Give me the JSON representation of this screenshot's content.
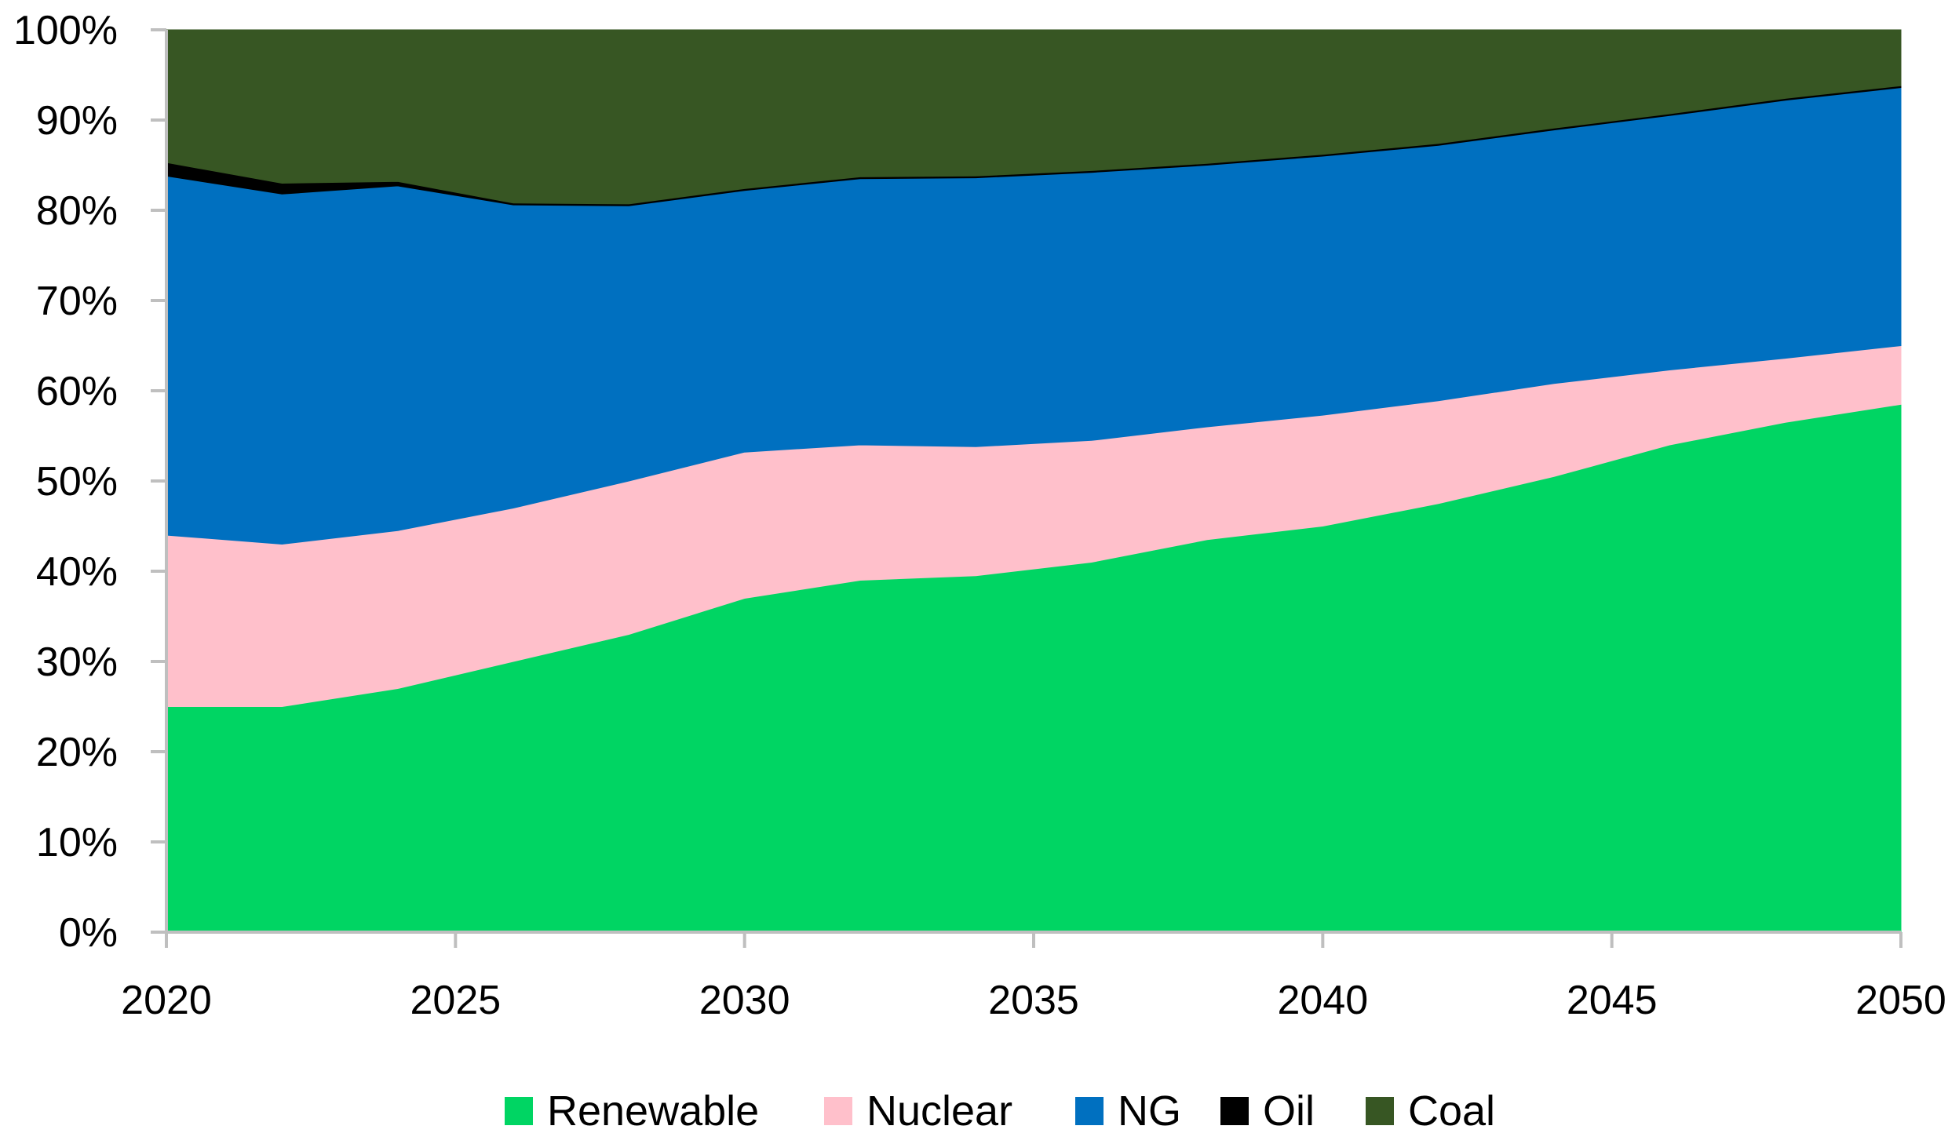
{
  "chart_data": {
    "type": "area",
    "stacked": true,
    "title": "",
    "xlabel": "",
    "ylabel": "",
    "x": [
      2020,
      2022,
      2024,
      2026,
      2028,
      2030,
      2032,
      2034,
      2036,
      2038,
      2040,
      2042,
      2044,
      2046,
      2048,
      2050
    ],
    "xlim": [
      2020,
      2050
    ],
    "ylim": [
      0,
      100
    ],
    "x_ticks": [
      "2020",
      "2025",
      "2030",
      "2035",
      "2040",
      "2045",
      "2050"
    ],
    "x_tick_values": [
      2020,
      2025,
      2030,
      2035,
      2040,
      2045,
      2050
    ],
    "y_ticks": [
      "0%",
      "10%",
      "20%",
      "30%",
      "40%",
      "50%",
      "60%",
      "70%",
      "80%",
      "90%",
      "100%"
    ],
    "y_tick_values": [
      0,
      10,
      20,
      30,
      40,
      50,
      60,
      70,
      80,
      90,
      100
    ],
    "grid": false,
    "legend_position": "bottom",
    "series": [
      {
        "name": "Renewable",
        "color": "#00d563",
        "values": [
          25.0,
          25.0,
          27.0,
          30.0,
          33.0,
          37.0,
          39.0,
          39.5,
          41.0,
          43.5,
          45.0,
          47.5,
          50.5,
          54.0,
          56.5,
          58.5
        ]
      },
      {
        "name": "Nuclear",
        "color": "#ffc0cb",
        "values": [
          19.0,
          18.0,
          17.5,
          17.0,
          17.0,
          16.2,
          15.0,
          14.3,
          13.5,
          12.5,
          12.3,
          11.4,
          10.3,
          8.3,
          7.1,
          6.5
        ]
      },
      {
        "name": "NG",
        "color": "#0070c0",
        "values": [
          39.8,
          38.8,
          38.2,
          33.6,
          30.5,
          29.0,
          29.5,
          29.8,
          29.7,
          29.0,
          28.7,
          28.3,
          28.1,
          28.2,
          28.6,
          28.6
        ]
      },
      {
        "name": "Oil",
        "color": "#000000",
        "values": [
          1.5,
          1.2,
          0.5,
          0.2,
          0.2,
          0.2,
          0.2,
          0.2,
          0.2,
          0.2,
          0.2,
          0.2,
          0.2,
          0.2,
          0.2,
          0.2
        ]
      },
      {
        "name": "Coal",
        "color": "#375623",
        "values": [
          14.7,
          17.0,
          16.8,
          19.2,
          19.3,
          17.6,
          16.3,
          16.2,
          15.6,
          14.8,
          13.8,
          12.6,
          10.9,
          9.3,
          7.6,
          6.2
        ]
      }
    ]
  }
}
